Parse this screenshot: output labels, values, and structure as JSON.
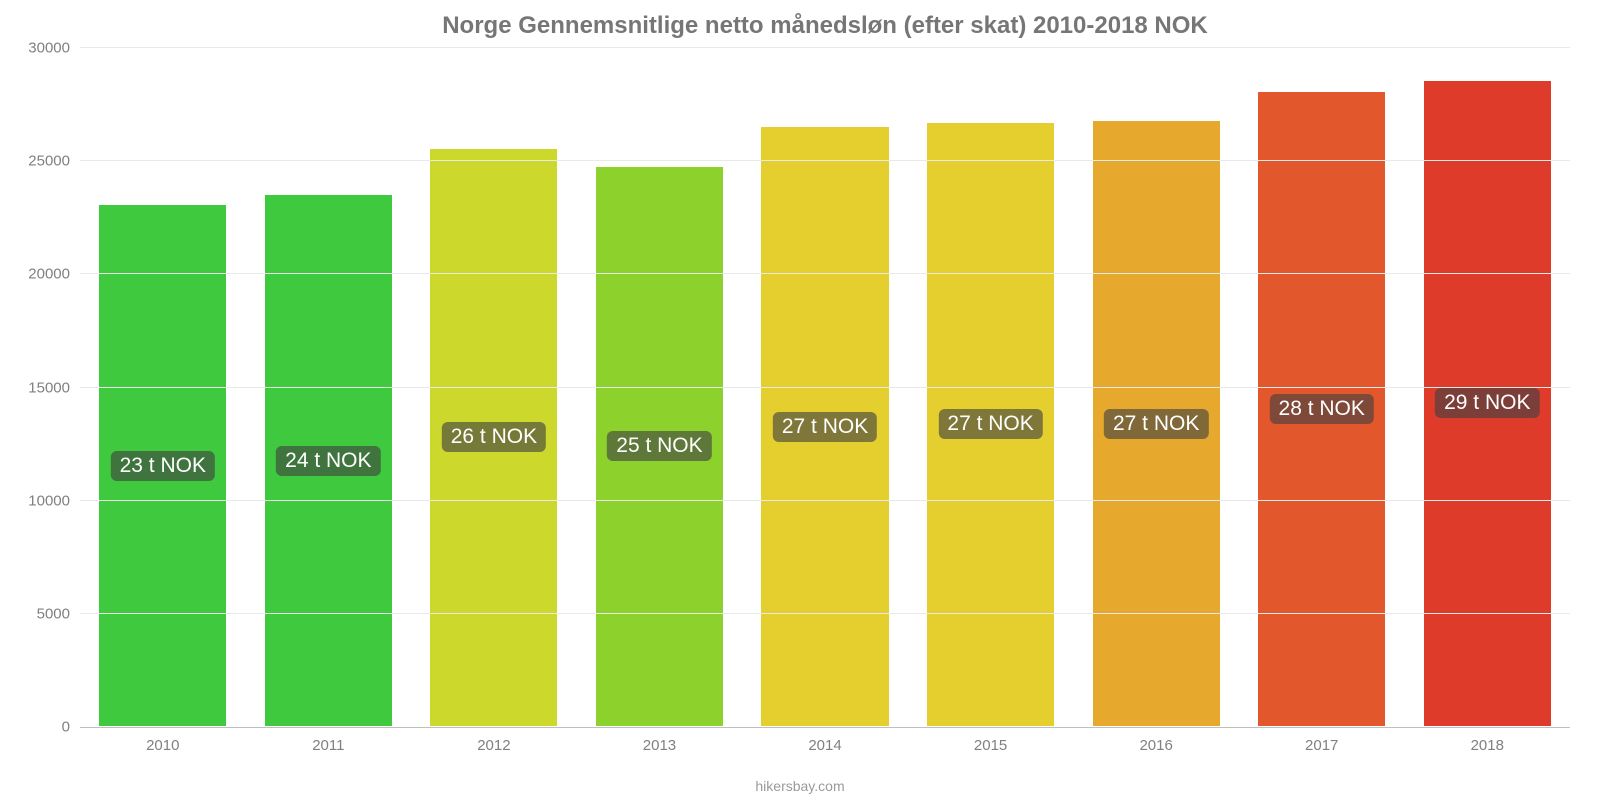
{
  "chart": {
    "type": "bar",
    "title": "Norge Gennemsnitlige netto månedsløn (efter skat) 2010-2018 NOK",
    "title_fontsize": 24,
    "title_color": "#767676",
    "background_color": "#ffffff",
    "grid_color": "#e9e9e9",
    "axis_line_color": "#bfbfbf",
    "tick_label_color": "#808080",
    "tick_fontsize": 15,
    "source_text": "hikersbay.com",
    "source_color": "#9a9a9a",
    "source_fontsize": 14,
    "ylim": [
      0,
      30000
    ],
    "ytick_step": 5000,
    "yticks": [
      0,
      5000,
      10000,
      15000,
      20000,
      25000,
      30000
    ],
    "bar_width": 0.78,
    "bar_border_color": "#ffffff",
    "bar_label_bg": "rgba(65,65,65,0.62)",
    "bar_label_color": "#ffffff",
    "bar_label_fontsize": 21,
    "bar_label_radius": 6,
    "categories": [
      "2010",
      "2011",
      "2012",
      "2013",
      "2014",
      "2015",
      "2016",
      "2017",
      "2018"
    ],
    "values": [
      23100,
      23550,
      25600,
      24800,
      26550,
      26750,
      26800,
      28100,
      28600
    ],
    "bar_colors": [
      "#3ec93e",
      "#3ec93e",
      "#ccd82c",
      "#8dd12d",
      "#e4cf2f",
      "#e4cf2f",
      "#e6a92d",
      "#e2572c",
      "#de3b2a"
    ],
    "bar_labels": [
      "23 t NOK",
      "24 t NOK",
      "26 t NOK",
      "25 t NOK",
      "27 t NOK",
      "27 t NOK",
      "27 t NOK",
      "28 t NOK",
      "29 t NOK"
    ]
  }
}
